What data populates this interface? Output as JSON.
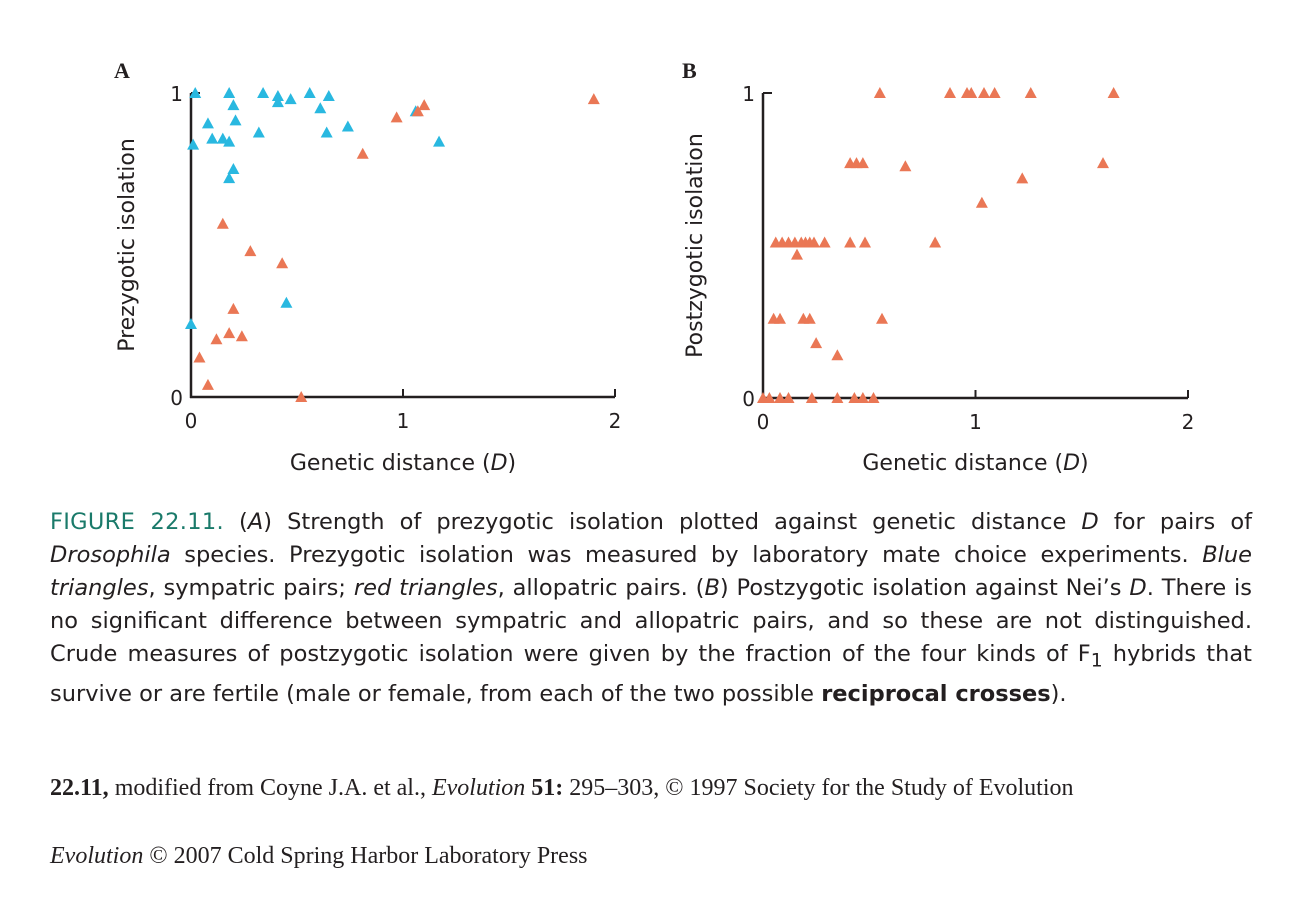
{
  "chart_data": [
    {
      "type": "scatter",
      "panel": "A",
      "xlabel": "Genetic distance (D)",
      "ylabel": "Prezygotic isolation",
      "xlim": [
        0,
        2
      ],
      "ylim": [
        0,
        1
      ],
      "xticks": [
        "0",
        "1",
        "2"
      ],
      "yticks": [
        "0",
        "1"
      ],
      "grid": false,
      "series": [
        {
          "color": "#29b8e0",
          "marker": "triangle",
          "points": [
            [
              0.02,
              1.0
            ],
            [
              0.01,
              0.83
            ],
            [
              0.08,
              0.9
            ],
            [
              0.1,
              0.85
            ],
            [
              0.15,
              0.85
            ],
            [
              0.18,
              0.84
            ],
            [
              0.18,
              1.0
            ],
            [
              0.2,
              0.96
            ],
            [
              0.21,
              0.91
            ],
            [
              0.32,
              0.87
            ],
            [
              0.34,
              1.0
            ],
            [
              0.41,
              0.97
            ],
            [
              0.41,
              0.99
            ],
            [
              0.47,
              0.98
            ],
            [
              0.56,
              1.0
            ],
            [
              0.61,
              0.95
            ],
            [
              0.64,
              0.87
            ],
            [
              0.65,
              0.99
            ],
            [
              0.74,
              0.89
            ],
            [
              1.06,
              0.94
            ],
            [
              1.17,
              0.84
            ],
            [
              0.18,
              0.72
            ],
            [
              0.2,
              0.75
            ],
            [
              0.45,
              0.31
            ],
            [
              0.0,
              0.24
            ]
          ]
        },
        {
          "color": "#ea7755",
          "marker": "triangle",
          "points": [
            [
              1.9,
              0.98
            ],
            [
              1.1,
              0.96
            ],
            [
              1.07,
              0.94
            ],
            [
              0.97,
              0.92
            ],
            [
              0.81,
              0.8
            ],
            [
              0.15,
              0.57
            ],
            [
              0.28,
              0.48
            ],
            [
              0.43,
              0.44
            ],
            [
              0.2,
              0.29
            ],
            [
              0.18,
              0.21
            ],
            [
              0.24,
              0.2
            ],
            [
              0.12,
              0.19
            ],
            [
              0.04,
              0.13
            ],
            [
              0.08,
              0.04
            ],
            [
              0.52,
              0.0
            ]
          ]
        }
      ]
    },
    {
      "type": "scatter",
      "panel": "B",
      "xlabel": "Genetic distance (D)",
      "ylabel": "Postzygotic isolation",
      "xlim": [
        0,
        2
      ],
      "ylim": [
        0,
        1
      ],
      "xticks": [
        "0",
        "1",
        "2"
      ],
      "yticks": [
        "0",
        "1"
      ],
      "grid": false,
      "series": [
        {
          "color": "#ea7755",
          "marker": "triangle",
          "points": [
            [
              0.55,
              1.0
            ],
            [
              0.88,
              1.0
            ],
            [
              0.96,
              1.0
            ],
            [
              0.98,
              1.0
            ],
            [
              1.04,
              1.0
            ],
            [
              1.09,
              1.0
            ],
            [
              1.26,
              1.0
            ],
            [
              1.65,
              1.0
            ],
            [
              0.41,
              0.77
            ],
            [
              0.44,
              0.77
            ],
            [
              0.47,
              0.77
            ],
            [
              0.67,
              0.76
            ],
            [
              1.6,
              0.77
            ],
            [
              1.22,
              0.72
            ],
            [
              1.03,
              0.64
            ],
            [
              0.06,
              0.51
            ],
            [
              0.09,
              0.51
            ],
            [
              0.12,
              0.51
            ],
            [
              0.15,
              0.51
            ],
            [
              0.18,
              0.51
            ],
            [
              0.2,
              0.51
            ],
            [
              0.22,
              0.51
            ],
            [
              0.24,
              0.51
            ],
            [
              0.29,
              0.51
            ],
            [
              0.16,
              0.47
            ],
            [
              0.41,
              0.51
            ],
            [
              0.48,
              0.51
            ],
            [
              0.81,
              0.51
            ],
            [
              0.05,
              0.26
            ],
            [
              0.08,
              0.26
            ],
            [
              0.19,
              0.26
            ],
            [
              0.22,
              0.26
            ],
            [
              0.56,
              0.26
            ],
            [
              0.25,
              0.18
            ],
            [
              0.35,
              0.14
            ],
            [
              0.0,
              0.0
            ],
            [
              0.03,
              0.0
            ],
            [
              0.08,
              0.0
            ],
            [
              0.12,
              0.0
            ],
            [
              0.23,
              0.0
            ],
            [
              0.35,
              0.0
            ],
            [
              0.43,
              0.0
            ],
            [
              0.47,
              0.0
            ],
            [
              0.52,
              0.0
            ]
          ]
        }
      ]
    }
  ],
  "caption": {
    "figure_label": "FIGURE 22.11.",
    "parts": [
      {
        "text": " (",
        "style": "normal"
      },
      {
        "text": "A",
        "style": "italic"
      },
      {
        "text": ") Strength of prezygotic isolation plotted against genetic distance ",
        "style": "normal"
      },
      {
        "text": "D",
        "style": "italic"
      },
      {
        "text": " for pairs of ",
        "style": "normal"
      },
      {
        "text": "Drosophila",
        "style": "italic"
      },
      {
        "text": " species. Prezygotic isolation was measured by laboratory mate choice experiments. ",
        "style": "normal"
      },
      {
        "text": "Blue triangles",
        "style": "italic"
      },
      {
        "text": ", sympatric pairs; ",
        "style": "normal"
      },
      {
        "text": "red triangles",
        "style": "italic"
      },
      {
        "text": ", allopatric pairs. (",
        "style": "normal"
      },
      {
        "text": "B",
        "style": "italic"
      },
      {
        "text": ") Postzygotic isolation against Nei’s ",
        "style": "normal"
      },
      {
        "text": "D",
        "style": "italic"
      },
      {
        "text": ". There is no significant difference between sympatric and allopatric pairs, and so these are not distinguished. Crude measures of postzygotic isolation were given by the fraction of the four kinds of F",
        "style": "normal"
      },
      {
        "text": "1",
        "style": "sub"
      },
      {
        "text": " hybrids that survive or are fertile (male or female, from each of the two possible ",
        "style": "normal"
      },
      {
        "text": "reciprocal crosses",
        "style": "bold"
      },
      {
        "text": ").",
        "style": "normal"
      }
    ]
  },
  "credit_line": [
    {
      "text": "22.11,",
      "style": "bold"
    },
    {
      "text": " modified from Coyne J.A. et al., ",
      "style": "normal"
    },
    {
      "text": "Evolution",
      "style": "italic"
    },
    {
      "text": " ",
      "style": "normal"
    },
    {
      "text": "51:",
      "style": "bold"
    },
    {
      "text": " 295–303, © 1997 Society for the Study of Evolution",
      "style": "normal"
    }
  ],
  "copyright_line": [
    {
      "text": "Evolution",
      "style": "italic"
    },
    {
      "text": " © 2007 Cold Spring Harbor Laboratory Press",
      "style": "normal"
    }
  ]
}
